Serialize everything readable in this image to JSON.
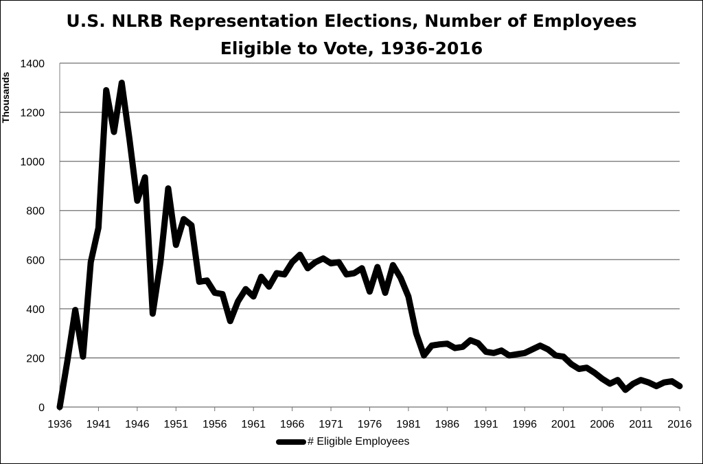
{
  "chart_data": {
    "type": "line",
    "title_line1": "U.S. NLRB Representation Elections, Number of Employees",
    "title_line2": "Eligible to Vote, 1936-2016",
    "ylabel": "Thousands",
    "xlabel": "",
    "ylim": [
      0,
      1400
    ],
    "yticks": [
      0,
      200,
      400,
      600,
      800,
      1000,
      1200,
      1400
    ],
    "xticks": [
      1936,
      1941,
      1946,
      1951,
      1956,
      1961,
      1966,
      1971,
      1976,
      1981,
      1986,
      1991,
      1996,
      2001,
      2006,
      2011,
      2016
    ],
    "xlim": [
      1936,
      2016
    ],
    "grid": "horizontal",
    "legend_position": "bottom",
    "color": "#000000",
    "series": [
      {
        "name": "# Eligible Employees",
        "x": [
          1936,
          1937,
          1938,
          1939,
          1940,
          1941,
          1942,
          1943,
          1944,
          1945,
          1946,
          1947,
          1948,
          1949,
          1950,
          1951,
          1952,
          1953,
          1954,
          1955,
          1956,
          1957,
          1958,
          1959,
          1960,
          1961,
          1962,
          1963,
          1964,
          1965,
          1966,
          1967,
          1968,
          1969,
          1970,
          1971,
          1972,
          1973,
          1974,
          1975,
          1976,
          1977,
          1978,
          1979,
          1980,
          1981,
          1982,
          1983,
          1984,
          1985,
          1986,
          1987,
          1988,
          1989,
          1990,
          1991,
          1992,
          1993,
          1994,
          1995,
          1996,
          1997,
          1998,
          1999,
          2000,
          2001,
          2002,
          2003,
          2004,
          2005,
          2006,
          2007,
          2008,
          2009,
          2010,
          2011,
          2012,
          2013,
          2014,
          2015,
          2016
        ],
        "values": [
          0,
          190,
          395,
          205,
          590,
          730,
          1290,
          1120,
          1320,
          1090,
          840,
          935,
          380,
          590,
          890,
          660,
          765,
          740,
          510,
          515,
          465,
          460,
          350,
          430,
          480,
          450,
          530,
          490,
          545,
          540,
          590,
          620,
          565,
          590,
          605,
          585,
          590,
          540,
          545,
          565,
          470,
          570,
          465,
          578,
          525,
          450,
          300,
          210,
          250,
          255,
          258,
          240,
          245,
          272,
          260,
          225,
          220,
          230,
          210,
          215,
          220,
          235,
          250,
          235,
          210,
          205,
          175,
          155,
          160,
          140,
          115,
          95,
          110,
          70,
          95,
          110,
          100,
          85,
          100,
          105,
          85
        ]
      }
    ]
  }
}
